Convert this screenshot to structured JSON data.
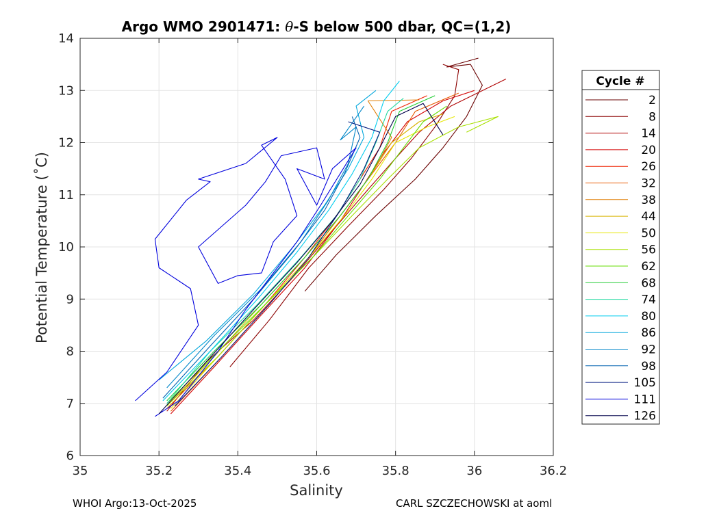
{
  "chart_data": {
    "type": "line",
    "title": "Argo WMO 2901471: θ-S below 500 dbar,  QC=(1,2)",
    "title_parts": {
      "prefix": "Argo WMO 2901471: ",
      "symbol": "θ",
      "suffix": "-S below 500 dbar,  QC=(1,2)"
    },
    "xlabel": "Salinity",
    "ylabel": "Potential Temperature (˚C)",
    "xlim": [
      35,
      36.2
    ],
    "ylim": [
      6,
      14
    ],
    "xticks": [
      35,
      35.2,
      35.4,
      35.6,
      35.8,
      36,
      36.2
    ],
    "xtick_labels": [
      "35",
      "35.2",
      "35.4",
      "35.6",
      "35.8",
      "36",
      "36.2"
    ],
    "yticks": [
      6,
      7,
      8,
      9,
      10,
      11,
      12,
      13,
      14
    ],
    "ytick_labels": [
      "6",
      "7",
      "8",
      "9",
      "10",
      "11",
      "12",
      "13",
      "14"
    ],
    "grid": true,
    "legend_title": "Cycle #",
    "legend_position": "outside-right",
    "series": [
      {
        "name": "2",
        "color": "#6a0000",
        "points": [
          [
            35.57,
            9.15
          ],
          [
            35.65,
            9.85
          ],
          [
            35.75,
            10.6
          ],
          [
            35.85,
            11.3
          ],
          [
            35.92,
            11.9
          ],
          [
            35.98,
            12.5
          ],
          [
            36.02,
            13.1
          ],
          [
            35.99,
            13.5
          ],
          [
            35.93,
            13.45
          ],
          [
            36.01,
            13.62
          ]
        ]
      },
      {
        "name": "8",
        "color": "#8b0000",
        "points": [
          [
            35.38,
            7.7
          ],
          [
            35.48,
            8.6
          ],
          [
            35.58,
            9.6
          ],
          [
            35.68,
            10.4
          ],
          [
            35.77,
            11.1
          ],
          [
            35.84,
            11.7
          ],
          [
            35.9,
            12.3
          ],
          [
            35.95,
            12.9
          ],
          [
            35.96,
            13.4
          ],
          [
            35.92,
            13.5
          ]
        ]
      },
      {
        "name": "14",
        "color": "#b00000",
        "points": [
          [
            35.22,
            6.85
          ],
          [
            35.32,
            7.8
          ],
          [
            35.44,
            8.6
          ],
          [
            35.55,
            9.5
          ],
          [
            35.65,
            10.4
          ],
          [
            35.73,
            11.1
          ],
          [
            35.8,
            11.7
          ],
          [
            35.86,
            12.2
          ],
          [
            35.94,
            12.7
          ],
          [
            36.08,
            13.22
          ]
        ]
      },
      {
        "name": "20",
        "color": "#d40000",
        "points": [
          [
            35.23,
            6.8
          ],
          [
            35.34,
            7.7
          ],
          [
            35.46,
            8.7
          ],
          [
            35.57,
            9.6
          ],
          [
            35.66,
            10.5
          ],
          [
            35.72,
            11.2
          ],
          [
            35.77,
            11.8
          ],
          [
            35.83,
            12.4
          ],
          [
            35.92,
            12.8
          ],
          [
            36.0,
            13.0
          ]
        ]
      },
      {
        "name": "26",
        "color": "#ee2200",
        "points": [
          [
            35.22,
            6.9
          ],
          [
            35.35,
            7.9
          ],
          [
            35.47,
            8.9
          ],
          [
            35.57,
            9.8
          ],
          [
            35.65,
            10.6
          ],
          [
            35.71,
            11.3
          ],
          [
            35.76,
            11.9
          ],
          [
            35.79,
            12.6
          ],
          [
            35.88,
            12.9
          ]
        ]
      },
      {
        "name": "32",
        "color": "#e85a00",
        "points": [
          [
            35.23,
            6.85
          ],
          [
            35.36,
            7.9
          ],
          [
            35.48,
            8.9
          ],
          [
            35.58,
            9.8
          ],
          [
            35.66,
            10.6
          ],
          [
            35.73,
            11.3
          ],
          [
            35.8,
            12.0
          ],
          [
            35.85,
            12.6
          ],
          [
            35.96,
            12.95
          ]
        ]
      },
      {
        "name": "38",
        "color": "#e07c00",
        "points": [
          [
            35.22,
            6.9
          ],
          [
            35.35,
            7.9
          ],
          [
            35.47,
            8.9
          ],
          [
            35.58,
            9.8
          ],
          [
            35.67,
            10.7
          ],
          [
            35.74,
            11.4
          ],
          [
            35.79,
            12.1
          ],
          [
            35.73,
            12.8
          ],
          [
            35.86,
            12.82
          ]
        ]
      },
      {
        "name": "44",
        "color": "#d8b400",
        "points": [
          [
            35.22,
            6.95
          ],
          [
            35.34,
            7.9
          ],
          [
            35.46,
            8.9
          ],
          [
            35.57,
            9.8
          ],
          [
            35.66,
            10.6
          ],
          [
            35.73,
            11.3
          ],
          [
            35.79,
            12.0
          ],
          [
            35.86,
            12.4
          ],
          [
            35.92,
            12.55
          ]
        ]
      },
      {
        "name": "50",
        "color": "#e6e600",
        "points": [
          [
            35.23,
            6.9
          ],
          [
            35.35,
            7.9
          ],
          [
            35.47,
            8.9
          ],
          [
            35.58,
            9.8
          ],
          [
            35.67,
            10.6
          ],
          [
            35.74,
            11.3
          ],
          [
            35.8,
            12.0
          ],
          [
            35.88,
            12.3
          ],
          [
            35.95,
            12.5
          ]
        ]
      },
      {
        "name": "56",
        "color": "#a8e000",
        "points": [
          [
            35.22,
            6.95
          ],
          [
            35.35,
            7.9
          ],
          [
            35.47,
            8.9
          ],
          [
            35.59,
            9.8
          ],
          [
            35.69,
            10.6
          ],
          [
            35.78,
            11.3
          ],
          [
            35.86,
            11.9
          ],
          [
            35.96,
            12.3
          ],
          [
            36.06,
            12.5
          ],
          [
            35.98,
            12.2
          ]
        ]
      },
      {
        "name": "62",
        "color": "#66dd00",
        "points": [
          [
            35.22,
            7.0
          ],
          [
            35.35,
            8.0
          ],
          [
            35.47,
            8.9
          ],
          [
            35.59,
            9.8
          ],
          [
            35.68,
            10.6
          ],
          [
            35.76,
            11.3
          ],
          [
            35.82,
            11.9
          ],
          [
            35.87,
            12.4
          ],
          [
            35.93,
            12.7
          ]
        ]
      },
      {
        "name": "68",
        "color": "#22cc33",
        "points": [
          [
            35.22,
            7.05
          ],
          [
            35.34,
            8.0
          ],
          [
            35.46,
            8.9
          ],
          [
            35.57,
            9.8
          ],
          [
            35.66,
            10.6
          ],
          [
            35.73,
            11.3
          ],
          [
            35.78,
            12.0
          ],
          [
            35.81,
            12.6
          ],
          [
            35.9,
            12.9
          ]
        ]
      },
      {
        "name": "74",
        "color": "#22d8a0",
        "points": [
          [
            35.22,
            7.0
          ],
          [
            35.33,
            8.0
          ],
          [
            35.45,
            8.9
          ],
          [
            35.56,
            9.8
          ],
          [
            35.65,
            10.6
          ],
          [
            35.71,
            11.3
          ],
          [
            35.75,
            12.0
          ],
          [
            35.78,
            12.6
          ],
          [
            35.82,
            12.85
          ]
        ]
      },
      {
        "name": "80",
        "color": "#00ccee",
        "points": [
          [
            35.21,
            7.05
          ],
          [
            35.33,
            8.0
          ],
          [
            35.45,
            9.0
          ],
          [
            35.55,
            9.9
          ],
          [
            35.63,
            10.7
          ],
          [
            35.69,
            11.4
          ],
          [
            35.74,
            12.1
          ],
          [
            35.77,
            12.8
          ],
          [
            35.81,
            13.18
          ]
        ]
      },
      {
        "name": "86",
        "color": "#00a6dc",
        "points": [
          [
            35.2,
            7.45
          ],
          [
            35.32,
            8.2
          ],
          [
            35.44,
            9.1
          ],
          [
            35.54,
            10.0
          ],
          [
            35.62,
            10.8
          ],
          [
            35.68,
            11.5
          ],
          [
            35.72,
            12.1
          ],
          [
            35.7,
            12.7
          ],
          [
            35.75,
            13.0
          ]
        ]
      },
      {
        "name": "92",
        "color": "#0086c8",
        "points": [
          [
            35.22,
            7.3
          ],
          [
            35.34,
            8.3
          ],
          [
            35.46,
            9.2
          ],
          [
            35.56,
            10.1
          ],
          [
            35.63,
            10.9
          ],
          [
            35.68,
            11.6
          ],
          [
            35.7,
            12.3
          ],
          [
            35.66,
            12.05
          ],
          [
            35.72,
            12.7
          ]
        ]
      },
      {
        "name": "98",
        "color": "#0060b0",
        "points": [
          [
            35.21,
            7.1
          ],
          [
            35.33,
            8.1
          ],
          [
            35.44,
            9.0
          ],
          [
            35.54,
            9.9
          ],
          [
            35.62,
            10.7
          ],
          [
            35.67,
            11.4
          ],
          [
            35.71,
            12.1
          ],
          [
            35.69,
            12.5
          ]
        ]
      },
      {
        "name": "105",
        "color": "#001a80",
        "points": [
          [
            35.24,
            6.95
          ],
          [
            35.36,
            7.9
          ],
          [
            35.48,
            8.9
          ],
          [
            35.58,
            9.8
          ],
          [
            35.66,
            10.7
          ],
          [
            35.72,
            11.5
          ],
          [
            35.76,
            12.2
          ],
          [
            35.68,
            12.4
          ]
        ]
      },
      {
        "name": "111",
        "color": "#0000dd",
        "points": [
          [
            35.14,
            7.05
          ],
          [
            35.22,
            7.6
          ],
          [
            35.3,
            8.5
          ],
          [
            35.28,
            9.2
          ],
          [
            35.2,
            9.6
          ],
          [
            35.19,
            10.15
          ],
          [
            35.27,
            10.9
          ],
          [
            35.33,
            11.25
          ],
          [
            35.3,
            11.3
          ],
          [
            35.42,
            11.6
          ],
          [
            35.5,
            12.1
          ],
          [
            35.46,
            11.95
          ],
          [
            35.52,
            11.3
          ],
          [
            35.55,
            10.6
          ],
          [
            35.49,
            10.1
          ],
          [
            35.46,
            9.5
          ],
          [
            35.4,
            9.45
          ],
          [
            35.35,
            9.3
          ],
          [
            35.3,
            10.0
          ],
          [
            35.42,
            10.8
          ],
          [
            35.47,
            11.25
          ],
          [
            35.51,
            11.75
          ],
          [
            35.6,
            11.9
          ],
          [
            35.62,
            11.3
          ],
          [
            35.55,
            11.5
          ],
          [
            35.6,
            10.8
          ],
          [
            35.64,
            11.5
          ],
          [
            35.7,
            11.9
          ],
          [
            35.61,
            10.8
          ],
          [
            35.55,
            10.1
          ],
          [
            35.5,
            9.6
          ],
          [
            35.42,
            8.8
          ],
          [
            35.35,
            8.0
          ],
          [
            35.25,
            7.05
          ],
          [
            35.19,
            6.75
          ]
        ]
      },
      {
        "name": "126",
        "color": "#00004a",
        "points": [
          [
            35.2,
            6.8
          ],
          [
            35.32,
            7.8
          ],
          [
            35.44,
            8.8
          ],
          [
            35.55,
            9.7
          ],
          [
            35.64,
            10.5
          ],
          [
            35.71,
            11.2
          ],
          [
            35.76,
            11.9
          ],
          [
            35.8,
            12.5
          ],
          [
            35.87,
            12.75
          ],
          [
            35.92,
            12.15
          ]
        ]
      }
    ]
  },
  "footer": {
    "left": "WHOI Argo:13-Oct-2025",
    "right": "CARL SZCZECHOWSKI at aoml"
  }
}
